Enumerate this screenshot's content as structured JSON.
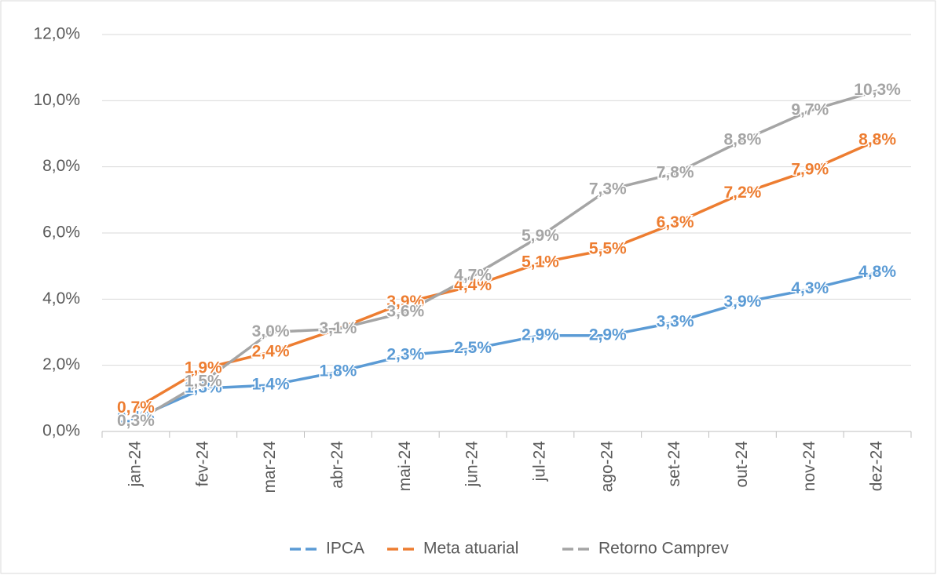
{
  "chart_data": {
    "type": "line",
    "categories": [
      "jan-24",
      "fev-24",
      "mar-24",
      "abr-24",
      "mai-24",
      "jun-24",
      "jul-24",
      "ago-24",
      "set-24",
      "out-24",
      "nov-24",
      "dez-24"
    ],
    "series": [
      {
        "name": "IPCA",
        "color": "#5b9bd5",
        "values": [
          0.4,
          1.3,
          1.4,
          1.8,
          2.3,
          2.5,
          2.9,
          2.9,
          3.3,
          3.9,
          4.3,
          4.8
        ],
        "value_labels": [
          "0,4%",
          "1,3%",
          "1,4%",
          "1,8%",
          "2,3%",
          "2,5%",
          "2,9%",
          "2,9%",
          "3,3%",
          "3,9%",
          "4,3%",
          "4,8%"
        ]
      },
      {
        "name": "Meta atuarial",
        "color": "#ed7d31",
        "values": [
          0.7,
          1.9,
          2.4,
          3.1,
          3.9,
          4.4,
          5.1,
          5.5,
          6.3,
          7.2,
          7.9,
          8.8
        ],
        "value_labels": [
          "0,7%",
          "1,9%",
          "2,4%",
          "3,1%",
          "3,9%",
          "4,4%",
          "5,1%",
          "5,5%",
          "6,3%",
          "7,2%",
          "7,9%",
          "8,8%"
        ]
      },
      {
        "name": "Retorno Camprev",
        "color": "#a5a5a5",
        "values": [
          0.3,
          1.5,
          3.0,
          3.1,
          3.6,
          4.7,
          5.9,
          7.3,
          7.8,
          8.8,
          9.7,
          10.3
        ],
        "value_labels": [
          "0,3%",
          "1,5%",
          "3,0%",
          "3,1%",
          "3,6%",
          "4,7%",
          "5,9%",
          "7,3%",
          "7,8%",
          "8,8%",
          "9,7%",
          "10,3%"
        ]
      }
    ],
    "ylim": [
      0,
      12
    ],
    "yticks": [
      {
        "value": 0,
        "label": "0,0%"
      },
      {
        "value": 2,
        "label": "2,0%"
      },
      {
        "value": 4,
        "label": "4,0%"
      },
      {
        "value": 6,
        "label": "6,0%"
      },
      {
        "value": 8,
        "label": "8,0%"
      },
      {
        "value": 10,
        "label": "10,0%"
      },
      {
        "value": 12,
        "label": "12,0%"
      }
    ],
    "grid": true,
    "legend": "bottom"
  }
}
